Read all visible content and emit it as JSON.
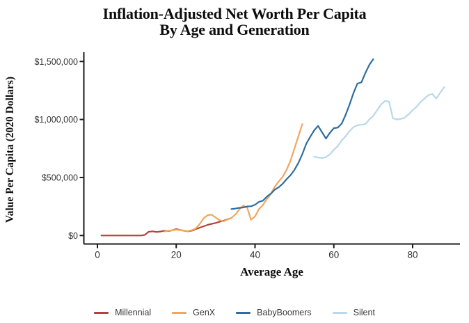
{
  "title": {
    "line1": "Inflation-Adjusted Net Worth Per Capita",
    "line2": "By Age and Generation"
  },
  "axes": {
    "x": {
      "label": "Average Age",
      "ticks": [
        {
          "value": 0,
          "label": "0"
        },
        {
          "value": 20,
          "label": "20"
        },
        {
          "value": 40,
          "label": "40"
        },
        {
          "value": 60,
          "label": "60"
        },
        {
          "value": 80,
          "label": "80"
        }
      ]
    },
    "y": {
      "label": "Value Per Capita (2020 Dollars)",
      "ticks": [
        {
          "value": 0,
          "label": "$0"
        },
        {
          "value": 500000,
          "label": "$500,000"
        },
        {
          "value": 1000000,
          "label": "$1,000,000"
        },
        {
          "value": 1500000,
          "label": "$1,500,000"
        }
      ]
    }
  },
  "chart_data": {
    "type": "line",
    "title": "Inflation-Adjusted Net Worth Per Capita By Age and Generation",
    "xlabel": "Average Age",
    "ylabel": "Value Per Capita (2020 Dollars)",
    "xlim": [
      -3,
      92
    ],
    "ylim": [
      0,
      1580000
    ],
    "grid": false,
    "legend_position": "bottom",
    "series": [
      {
        "name": "Millennial",
        "color": "#b2423f",
        "points": [
          [
            1,
            0
          ],
          [
            2,
            0
          ],
          [
            3,
            0
          ],
          [
            4,
            0
          ],
          [
            5,
            0
          ],
          [
            6,
            0
          ],
          [
            7,
            0
          ],
          [
            8,
            0
          ],
          [
            9,
            0
          ],
          [
            10,
            0
          ],
          [
            11,
            0
          ],
          [
            12,
            5000
          ],
          [
            13,
            32000
          ],
          [
            14,
            36000
          ],
          [
            15,
            30000
          ],
          [
            16,
            34000
          ],
          [
            17,
            41000
          ],
          [
            18,
            38000
          ],
          [
            19,
            45000
          ],
          [
            20,
            55000
          ],
          [
            21,
            48000
          ],
          [
            22,
            40000
          ],
          [
            23,
            36000
          ],
          [
            24,
            42000
          ],
          [
            25,
            55000
          ],
          [
            26,
            68000
          ],
          [
            27,
            80000
          ],
          [
            28,
            92000
          ],
          [
            29,
            100000
          ],
          [
            30,
            108000
          ],
          [
            31,
            118000
          ],
          [
            32,
            128000
          ],
          [
            33,
            140000
          ],
          [
            34,
            150000
          ]
        ]
      },
      {
        "name": "GenX",
        "color": "#f2a55e",
        "points": [
          [
            17,
            35000
          ],
          [
            18,
            40000
          ],
          [
            19,
            45000
          ],
          [
            20,
            50000
          ],
          [
            21,
            46000
          ],
          [
            22,
            40000
          ],
          [
            23,
            38000
          ],
          [
            24,
            46000
          ],
          [
            25,
            62000
          ],
          [
            26,
            100000
          ],
          [
            27,
            150000
          ],
          [
            28,
            175000
          ],
          [
            29,
            180000
          ],
          [
            30,
            155000
          ],
          [
            31,
            132000
          ],
          [
            32,
            122000
          ],
          [
            33,
            138000
          ],
          [
            34,
            152000
          ],
          [
            35,
            180000
          ],
          [
            36,
            225000
          ],
          [
            37,
            258000
          ],
          [
            38,
            240000
          ],
          [
            39,
            135000
          ],
          [
            40,
            165000
          ],
          [
            41,
            228000
          ],
          [
            42,
            262000
          ],
          [
            43,
            315000
          ],
          [
            44,
            355000
          ],
          [
            45,
            420000
          ],
          [
            46,
            465000
          ],
          [
            47,
            505000
          ],
          [
            48,
            565000
          ],
          [
            49,
            645000
          ],
          [
            50,
            750000
          ],
          [
            51,
            855000
          ],
          [
            52,
            960000
          ]
        ]
      },
      {
        "name": "BabyBoomers",
        "color": "#2e6d9f",
        "points": [
          [
            34,
            228000
          ],
          [
            35,
            232000
          ],
          [
            36,
            238000
          ],
          [
            37,
            242000
          ],
          [
            38,
            250000
          ],
          [
            39,
            252000
          ],
          [
            40,
            265000
          ],
          [
            41,
            290000
          ],
          [
            42,
            300000
          ],
          [
            43,
            335000
          ],
          [
            44,
            360000
          ],
          [
            45,
            395000
          ],
          [
            46,
            415000
          ],
          [
            47,
            445000
          ],
          [
            48,
            485000
          ],
          [
            49,
            520000
          ],
          [
            50,
            565000
          ],
          [
            51,
            625000
          ],
          [
            52,
            700000
          ],
          [
            53,
            790000
          ],
          [
            54,
            850000
          ],
          [
            55,
            905000
          ],
          [
            56,
            945000
          ],
          [
            57,
            890000
          ],
          [
            58,
            835000
          ],
          [
            59,
            885000
          ],
          [
            60,
            925000
          ],
          [
            61,
            930000
          ],
          [
            62,
            965000
          ],
          [
            63,
            1040000
          ],
          [
            64,
            1130000
          ],
          [
            65,
            1230000
          ],
          [
            66,
            1310000
          ],
          [
            67,
            1320000
          ],
          [
            68,
            1400000
          ],
          [
            69,
            1470000
          ],
          [
            70,
            1520000
          ]
        ]
      },
      {
        "name": "Silent",
        "color": "#b9d8e8",
        "points": [
          [
            55,
            680000
          ],
          [
            56,
            672000
          ],
          [
            57,
            668000
          ],
          [
            58,
            675000
          ],
          [
            59,
            700000
          ],
          [
            60,
            740000
          ],
          [
            61,
            770000
          ],
          [
            62,
            820000
          ],
          [
            63,
            855000
          ],
          [
            64,
            900000
          ],
          [
            65,
            935000
          ],
          [
            66,
            950000
          ],
          [
            67,
            955000
          ],
          [
            68,
            960000
          ],
          [
            69,
            1000000
          ],
          [
            70,
            1030000
          ],
          [
            71,
            1080000
          ],
          [
            72,
            1130000
          ],
          [
            73,
            1160000
          ],
          [
            74,
            1155000
          ],
          [
            75,
            1010000
          ],
          [
            76,
            1000000
          ],
          [
            77,
            1005000
          ],
          [
            78,
            1015000
          ],
          [
            79,
            1045000
          ],
          [
            80,
            1080000
          ],
          [
            81,
            1110000
          ],
          [
            82,
            1150000
          ],
          [
            83,
            1180000
          ],
          [
            84,
            1210000
          ],
          [
            85,
            1220000
          ],
          [
            86,
            1180000
          ],
          [
            87,
            1230000
          ],
          [
            88,
            1280000
          ]
        ]
      }
    ]
  },
  "legend": [
    {
      "label": "Millennial",
      "color": "#b2423f"
    },
    {
      "label": "GenX",
      "color": "#f2a55e"
    },
    {
      "label": "BabyBoomers",
      "color": "#2e6d9f"
    },
    {
      "label": "Silent",
      "color": "#b9d8e8"
    }
  ]
}
